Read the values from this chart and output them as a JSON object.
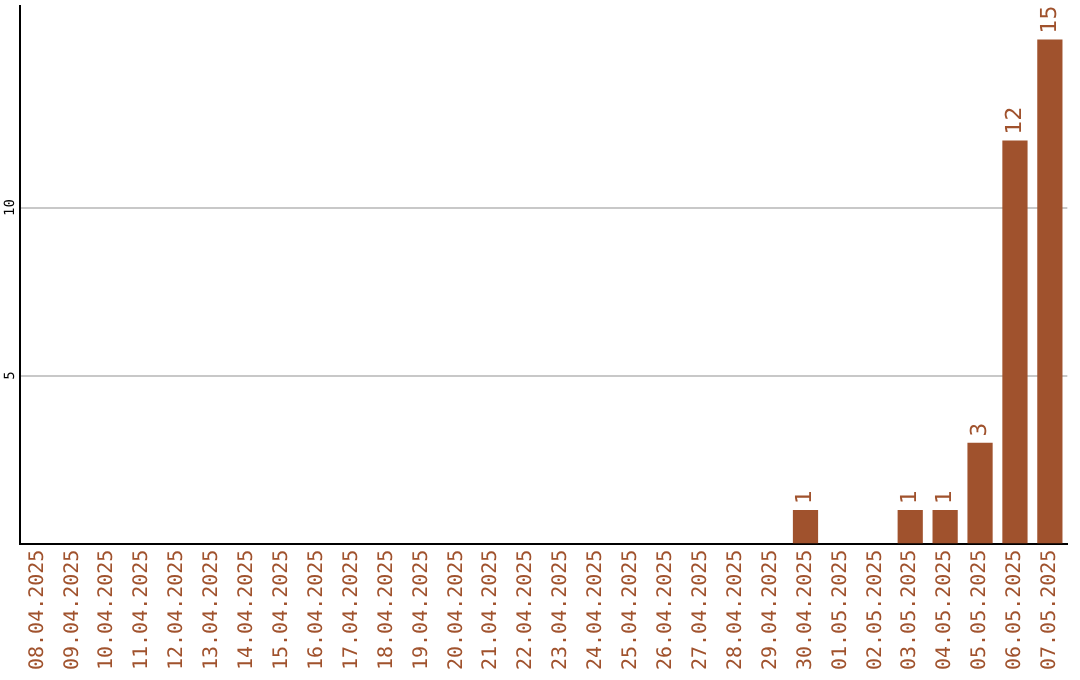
{
  "chart_data": {
    "type": "bar",
    "categories": [
      "08.04.2025",
      "09.04.2025",
      "10.04.2025",
      "11.04.2025",
      "12.04.2025",
      "13.04.2025",
      "14.04.2025",
      "15.04.2025",
      "16.04.2025",
      "17.04.2025",
      "18.04.2025",
      "19.04.2025",
      "20.04.2025",
      "21.04.2025",
      "22.04.2025",
      "23.04.2025",
      "24.04.2025",
      "25.04.2025",
      "26.04.2025",
      "27.04.2025",
      "28.04.2025",
      "29.04.2025",
      "30.04.2025",
      "01.05.2025",
      "02.05.2025",
      "03.05.2025",
      "04.05.2025",
      "05.05.2025",
      "06.05.2025",
      "07.05.2025"
    ],
    "values": [
      0,
      0,
      0,
      0,
      0,
      0,
      0,
      0,
      0,
      0,
      0,
      0,
      0,
      0,
      0,
      0,
      0,
      0,
      0,
      0,
      0,
      0,
      1,
      0,
      0,
      1,
      1,
      3,
      12,
      15
    ],
    "value_labels": [
      null,
      null,
      null,
      null,
      null,
      null,
      null,
      null,
      null,
      null,
      null,
      null,
      null,
      null,
      null,
      null,
      null,
      null,
      null,
      null,
      null,
      null,
      "1",
      null,
      null,
      "1",
      "1",
      "3",
      "12",
      "15"
    ],
    "color": "#a0522d",
    "ylim": [
      0,
      16
    ],
    "yticks": [
      5,
      10
    ],
    "grid": "y",
    "legend": false
  }
}
